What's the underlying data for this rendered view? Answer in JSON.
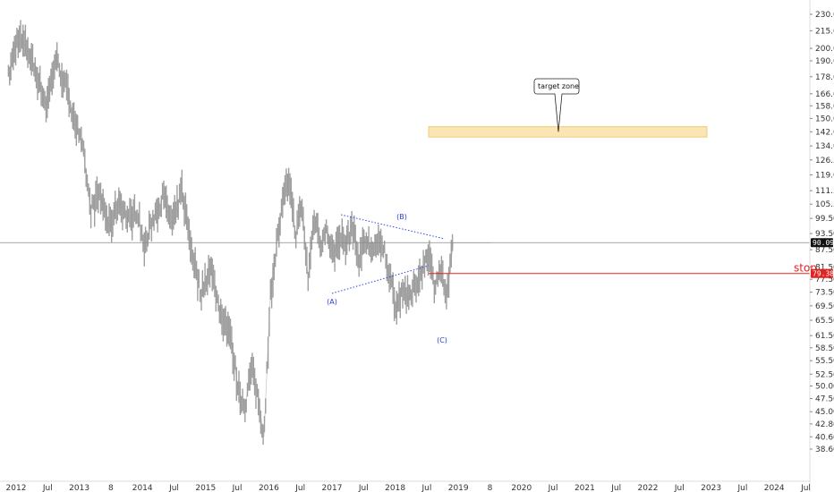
{
  "chart_data": {
    "type": "line",
    "title": "",
    "xlabel": "",
    "ylabel": "",
    "ylim": [
      36.0,
      236.0
    ],
    "y_scale": "log",
    "xlim": [
      2011.85,
      2025.0
    ],
    "grid": false,
    "y_tick_labels": [
      "230.00",
      "215.00",
      "200.00",
      "190.00",
      "178.00",
      "166.00",
      "158.00",
      "150.00",
      "142.00",
      "134.00",
      "126.50",
      "119.00",
      "111.50",
      "105.50",
      "99.50",
      "93.50",
      "87.50",
      "81.50",
      "77.50",
      "73.50",
      "69.50",
      "65.50",
      "61.50",
      "58.50",
      "55.50",
      "52.50",
      "50.00",
      "47.50",
      "45.00",
      "42.80",
      "40.60",
      "38.60"
    ],
    "x_tick_labels": [
      "2012",
      "Jul",
      "2013",
      "8",
      "2014",
      "Jul",
      "2015",
      "Jul",
      "2016",
      "Jul",
      "2017",
      "Jul",
      "2018",
      "Jul",
      "2019",
      "8",
      "2020",
      "Jul",
      "2021",
      "Jul",
      "2022",
      "Jul",
      "2023",
      "Jul",
      "2024",
      "Jul"
    ],
    "series": [
      {
        "x": [
          2011.85,
          2012.0,
          2012.15,
          2012.3,
          2012.45,
          2012.6,
          2012.75,
          2012.9,
          2013.05,
          2013.15,
          2013.3,
          2013.45,
          2013.6,
          2013.75,
          2013.9,
          2014.0,
          2014.15,
          2014.3,
          2014.45,
          2014.6,
          2014.75,
          2014.9,
          2015.05,
          2015.2,
          2015.35,
          2015.5,
          2015.6,
          2015.7,
          2015.8,
          2015.9,
          2016.0,
          2016.1,
          2016.2,
          2016.3,
          2016.4,
          2016.5,
          2016.6,
          2016.7,
          2016.8,
          2016.9,
          2017.0,
          2017.1,
          2017.2,
          2017.3,
          2017.4,
          2017.5,
          2017.6,
          2017.7,
          2017.8,
          2017.9,
          2018.0,
          2018.1,
          2018.2,
          2018.3,
          2018.4,
          2018.5,
          2018.6,
          2018.7,
          2018.8,
          2018.9,
          2019.0,
          2019.1,
          2019.2,
          2019.3,
          2019.4,
          2019.5
        ],
        "y": [
          178,
          210,
          200,
          180,
          158,
          192,
          172,
          150,
          128,
          103,
          110,
          96,
          107,
          99,
          103,
          88,
          100,
          109,
          97,
          112,
          88,
          73,
          82,
          68,
          63,
          49,
          46,
          54,
          48,
          40.6,
          72,
          89,
          106,
          118,
          93,
          105,
          78,
          101,
          90,
          95,
          85,
          93,
          89,
          97,
          84,
          91,
          88,
          89,
          88,
          78,
          69,
          75,
          71,
          76,
          80,
          87,
          76,
          81,
          72,
          90,
          90,
          90,
          90,
          90,
          90,
          90
        ]
      }
    ],
    "annotations": {
      "wave_labels": [
        "(A)",
        "(B)",
        "(C)"
      ],
      "callout": "target zone",
      "target_zone": [
        139.0,
        145.0
      ],
      "stop_label": "stop",
      "stop_price": "79.38",
      "last_price": "90.09",
      "stop_value": 79.38,
      "last_value": 90.09
    },
    "colors": {
      "price": "#9e9e9e",
      "triangle": "#3244e8",
      "wave_label": "#2a3fd6",
      "stop_line": "#e32222",
      "target_fill": "#fbe6b3",
      "target_border": "#f3c978",
      "last_price_line": "#8a8a8a",
      "last_price_tag": "#111111",
      "stop_tag": "#e32222"
    }
  }
}
